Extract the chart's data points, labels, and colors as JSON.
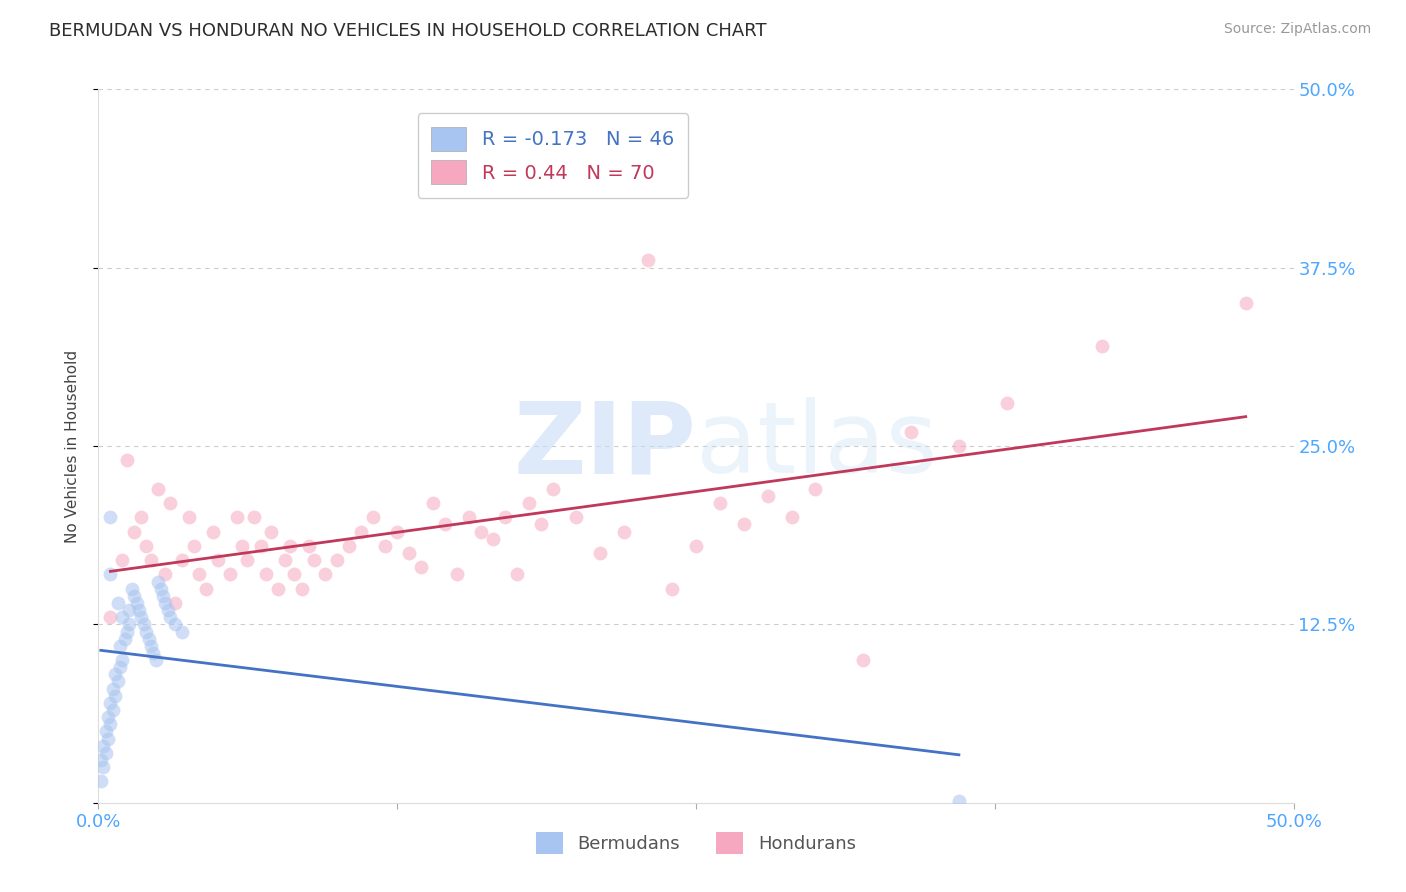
{
  "title": "BERMUDAN VS HONDURAN NO VEHICLES IN HOUSEHOLD CORRELATION CHART",
  "source": "Source: ZipAtlas.com",
  "ylabel": "No Vehicles in Household",
  "xlim": [
    0.0,
    0.5
  ],
  "ylim": [
    0.0,
    0.5
  ],
  "x_ticks": [
    0.0,
    0.125,
    0.25,
    0.375,
    0.5
  ],
  "y_ticks": [
    0.0,
    0.125,
    0.25,
    0.375,
    0.5
  ],
  "y_tick_labels_right": [
    "",
    "12.5%",
    "25.0%",
    "37.5%",
    "50.0%"
  ],
  "x_tick_labels": [
    "0.0%",
    "",
    "",
    "",
    "50.0%"
  ],
  "bermudan_R": -0.173,
  "bermudan_N": 46,
  "honduran_R": 0.44,
  "honduran_N": 70,
  "bermudan_color": "#a8c4f0",
  "honduran_color": "#f5a8c0",
  "bermudan_line_color": "#4472c4",
  "honduran_line_color": "#c0385a",
  "legend_label_bermudan": "Bermudans",
  "legend_label_honduran": "Hondurans",
  "background_color": "#ffffff",
  "grid_color": "#cccccc",
  "title_color": "#2d2d2d",
  "axis_tick_color": "#4da6ff",
  "watermark_color": "#c8ddf5",
  "watermark_fontsize": 72,
  "marker_size": 100,
  "marker_alpha": 0.55,
  "bermudan_x": [
    0.001,
    0.001,
    0.002,
    0.002,
    0.003,
    0.003,
    0.004,
    0.004,
    0.005,
    0.005,
    0.005,
    0.006,
    0.006,
    0.007,
    0.007,
    0.008,
    0.008,
    0.009,
    0.009,
    0.01,
    0.01,
    0.011,
    0.012,
    0.013,
    0.013,
    0.014,
    0.015,
    0.016,
    0.017,
    0.018,
    0.019,
    0.02,
    0.021,
    0.022,
    0.023,
    0.024,
    0.025,
    0.026,
    0.027,
    0.028,
    0.029,
    0.03,
    0.032,
    0.035,
    0.36,
    0.005
  ],
  "bermudan_y": [
    0.03,
    0.015,
    0.025,
    0.04,
    0.035,
    0.05,
    0.045,
    0.06,
    0.055,
    0.07,
    0.2,
    0.065,
    0.08,
    0.075,
    0.09,
    0.085,
    0.14,
    0.095,
    0.11,
    0.1,
    0.13,
    0.115,
    0.12,
    0.125,
    0.135,
    0.15,
    0.145,
    0.14,
    0.135,
    0.13,
    0.125,
    0.12,
    0.115,
    0.11,
    0.105,
    0.1,
    0.155,
    0.15,
    0.145,
    0.14,
    0.135,
    0.13,
    0.125,
    0.12,
    0.001,
    0.16
  ],
  "honduran_x": [
    0.005,
    0.01,
    0.012,
    0.015,
    0.018,
    0.02,
    0.022,
    0.025,
    0.028,
    0.03,
    0.032,
    0.035,
    0.038,
    0.04,
    0.042,
    0.045,
    0.048,
    0.05,
    0.055,
    0.058,
    0.06,
    0.062,
    0.065,
    0.068,
    0.07,
    0.072,
    0.075,
    0.078,
    0.08,
    0.082,
    0.085,
    0.088,
    0.09,
    0.095,
    0.1,
    0.105,
    0.11,
    0.115,
    0.12,
    0.125,
    0.13,
    0.135,
    0.14,
    0.145,
    0.15,
    0.155,
    0.16,
    0.165,
    0.17,
    0.175,
    0.18,
    0.185,
    0.19,
    0.2,
    0.21,
    0.22,
    0.23,
    0.24,
    0.25,
    0.26,
    0.27,
    0.28,
    0.29,
    0.3,
    0.32,
    0.34,
    0.36,
    0.38,
    0.42,
    0.48
  ],
  "honduran_y": [
    0.13,
    0.17,
    0.24,
    0.19,
    0.2,
    0.18,
    0.17,
    0.22,
    0.16,
    0.21,
    0.14,
    0.17,
    0.2,
    0.18,
    0.16,
    0.15,
    0.19,
    0.17,
    0.16,
    0.2,
    0.18,
    0.17,
    0.2,
    0.18,
    0.16,
    0.19,
    0.15,
    0.17,
    0.18,
    0.16,
    0.15,
    0.18,
    0.17,
    0.16,
    0.17,
    0.18,
    0.19,
    0.2,
    0.18,
    0.19,
    0.175,
    0.165,
    0.21,
    0.195,
    0.16,
    0.2,
    0.19,
    0.185,
    0.2,
    0.16,
    0.21,
    0.195,
    0.22,
    0.2,
    0.175,
    0.19,
    0.38,
    0.15,
    0.18,
    0.21,
    0.195,
    0.215,
    0.2,
    0.22,
    0.1,
    0.26,
    0.25,
    0.28,
    0.32,
    0.35
  ]
}
